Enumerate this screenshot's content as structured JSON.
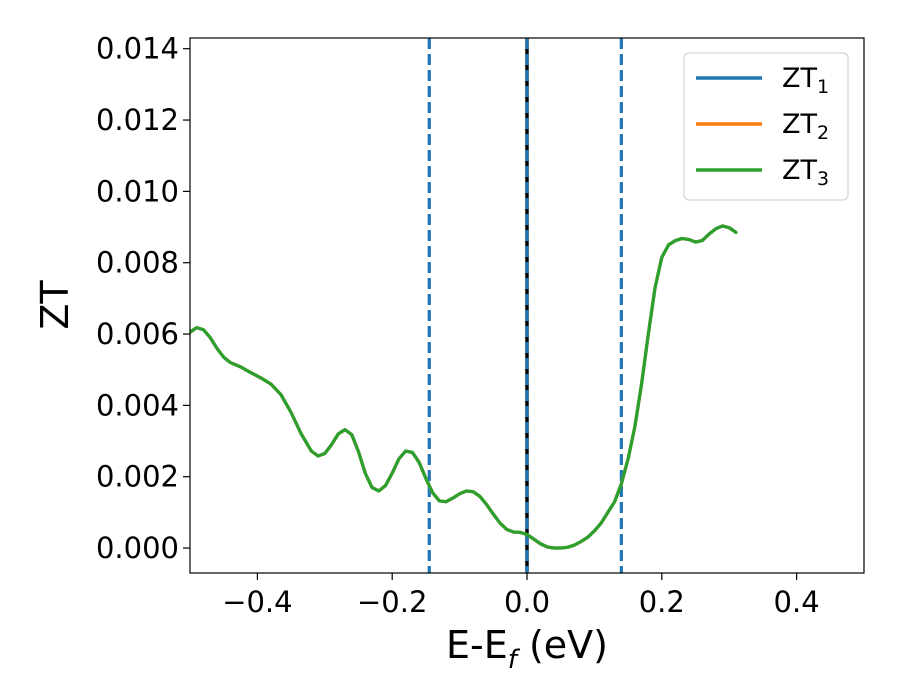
{
  "chart_data": {
    "type": "line",
    "xlabel_main": "E-E",
    "xlabel_sub": "f",
    "xlabel_unit": " (eV)",
    "ylabel": "ZT",
    "xlim": [
      -0.5,
      0.5
    ],
    "ylim": [
      -0.0007,
      0.0143
    ],
    "x_ticks": [
      -0.4,
      -0.2,
      0.0,
      0.2,
      0.4
    ],
    "x_tick_labels": [
      "−0.4",
      "−0.2",
      "0.0",
      "0.2",
      "0.4"
    ],
    "y_ticks": [
      0.0,
      0.002,
      0.004,
      0.006,
      0.008,
      0.01,
      0.012,
      0.014
    ],
    "y_tick_labels": [
      "0.000",
      "0.002",
      "0.004",
      "0.006",
      "0.008",
      "0.010",
      "0.012",
      "0.014"
    ],
    "grid": false,
    "legend_position": "top-right",
    "colors": {
      "zt1": "#1f77b4",
      "zt2": "#ff7f0e",
      "zt3": "#2ca02c",
      "fermi": "#000000"
    },
    "series": [
      {
        "name": "ZT",
        "sub": "1",
        "color": "#1f77b4",
        "same_as": "ZT3"
      },
      {
        "name": "ZT",
        "sub": "2",
        "color": "#ff7f0e",
        "same_as": "ZT3"
      },
      {
        "name": "ZT",
        "sub": "3",
        "color": "#2ca02c",
        "points": [
          [
            -0.5,
            0.00605
          ],
          [
            -0.49,
            0.00618
          ],
          [
            -0.48,
            0.00612
          ],
          [
            -0.47,
            0.0059
          ],
          [
            -0.46,
            0.0056
          ],
          [
            -0.45,
            0.00535
          ],
          [
            -0.44,
            0.0052
          ],
          [
            -0.425,
            0.00508
          ],
          [
            -0.41,
            0.00492
          ],
          [
            -0.395,
            0.00477
          ],
          [
            -0.38,
            0.0046
          ],
          [
            -0.365,
            0.0043
          ],
          [
            -0.35,
            0.0038
          ],
          [
            -0.335,
            0.0032
          ],
          [
            -0.32,
            0.00272
          ],
          [
            -0.31,
            0.00258
          ],
          [
            -0.3,
            0.00265
          ],
          [
            -0.29,
            0.0029
          ],
          [
            -0.28,
            0.0032
          ],
          [
            -0.27,
            0.00332
          ],
          [
            -0.26,
            0.00318
          ],
          [
            -0.25,
            0.0027
          ],
          [
            -0.24,
            0.0021
          ],
          [
            -0.23,
            0.0017
          ],
          [
            -0.22,
            0.0016
          ],
          [
            -0.21,
            0.00175
          ],
          [
            -0.2,
            0.0021
          ],
          [
            -0.19,
            0.0025
          ],
          [
            -0.18,
            0.00272
          ],
          [
            -0.17,
            0.00268
          ],
          [
            -0.16,
            0.0024
          ],
          [
            -0.15,
            0.00195
          ],
          [
            -0.14,
            0.00155
          ],
          [
            -0.13,
            0.00132
          ],
          [
            -0.12,
            0.0013
          ],
          [
            -0.11,
            0.0014
          ],
          [
            -0.1,
            0.00152
          ],
          [
            -0.09,
            0.0016
          ],
          [
            -0.08,
            0.00158
          ],
          [
            -0.07,
            0.00145
          ],
          [
            -0.06,
            0.00122
          ],
          [
            -0.05,
            0.00095
          ],
          [
            -0.04,
            0.0007
          ],
          [
            -0.03,
            0.00052
          ],
          [
            -0.02,
            0.00045
          ],
          [
            -0.01,
            0.00044
          ],
          [
            0.0,
            0.00038
          ],
          [
            0.01,
            0.00025
          ],
          [
            0.02,
            0.00012
          ],
          [
            0.03,
            3e-05
          ],
          [
            0.04,
            0.0
          ],
          [
            0.05,
            0.0
          ],
          [
            0.06,
            2e-05
          ],
          [
            0.07,
            8e-05
          ],
          [
            0.08,
            0.00018
          ],
          [
            0.09,
            0.0003
          ],
          [
            0.1,
            0.00048
          ],
          [
            0.11,
            0.0007
          ],
          [
            0.12,
            0.001
          ],
          [
            0.13,
            0.0013
          ],
          [
            0.14,
            0.0018
          ],
          [
            0.15,
            0.0025
          ],
          [
            0.16,
            0.0034
          ],
          [
            0.17,
            0.0046
          ],
          [
            0.18,
            0.006
          ],
          [
            0.19,
            0.0073
          ],
          [
            0.2,
            0.00815
          ],
          [
            0.21,
            0.0085
          ],
          [
            0.22,
            0.00862
          ],
          [
            0.23,
            0.00868
          ],
          [
            0.24,
            0.00865
          ],
          [
            0.25,
            0.00858
          ],
          [
            0.26,
            0.00862
          ],
          [
            0.27,
            0.0088
          ],
          [
            0.28,
            0.00895
          ],
          [
            0.29,
            0.00903
          ],
          [
            0.3,
            0.00898
          ],
          [
            0.31,
            0.00885
          ]
        ]
      }
    ],
    "vlines": [
      {
        "x": -0.145,
        "style": "dashed",
        "color": "#1f77b4"
      },
      {
        "x": 0.0,
        "style": "solid",
        "color": "#000000"
      },
      {
        "x": 0.0,
        "style": "dashed",
        "color": "#1f77b4"
      },
      {
        "x": 0.14,
        "style": "dashed",
        "color": "#1f77b4"
      }
    ]
  }
}
